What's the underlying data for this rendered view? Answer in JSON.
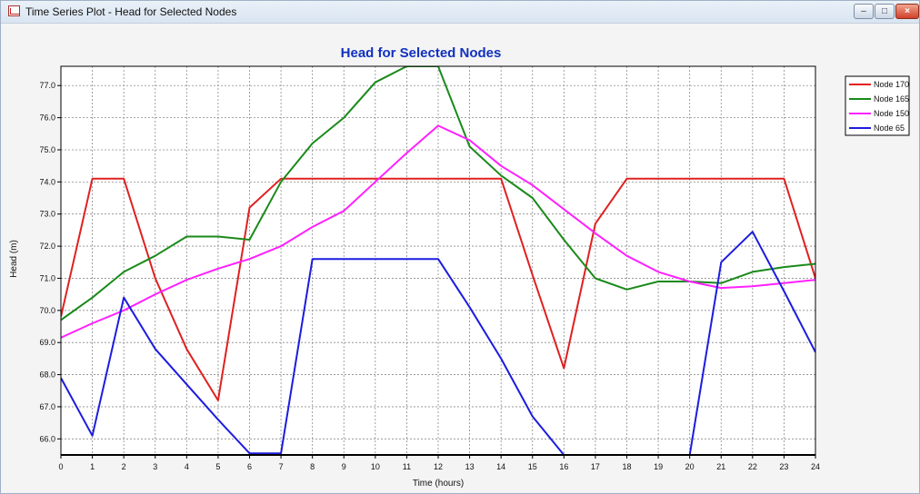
{
  "window": {
    "title": "Time Series Plot - Head for Selected Nodes",
    "min_glyph": "–",
    "max_glyph": "□",
    "close_glyph": "×"
  },
  "chart_data": {
    "type": "line",
    "title": "Head for Selected Nodes",
    "xlabel": "Time (hours)",
    "ylabel": "Head (m)",
    "xlim": [
      0,
      24
    ],
    "ylim": [
      65.5,
      77.6
    ],
    "xticks": [
      0,
      1,
      2,
      3,
      4,
      5,
      6,
      7,
      8,
      9,
      10,
      11,
      12,
      13,
      14,
      15,
      16,
      17,
      18,
      19,
      20,
      21,
      22,
      23,
      24
    ],
    "yticks": [
      66.0,
      67.0,
      68.0,
      69.0,
      70.0,
      71.0,
      72.0,
      73.0,
      74.0,
      75.0,
      76.0,
      77.0
    ],
    "grid": true,
    "legend_position": "right",
    "series": [
      {
        "name": "Node 170",
        "color": "#e02020",
        "x": [
          0,
          1,
          2,
          3,
          4,
          5,
          6,
          7,
          8,
          9,
          10,
          11,
          12,
          13,
          14,
          15,
          16,
          17,
          18,
          19,
          20,
          21,
          22,
          23,
          24
        ],
        "y": [
          69.8,
          74.1,
          74.1,
          71.0,
          68.8,
          67.2,
          73.2,
          74.1,
          74.1,
          74.1,
          74.1,
          74.1,
          74.1,
          74.1,
          74.1,
          71.1,
          68.2,
          72.7,
          74.1,
          74.1,
          74.1,
          74.1,
          74.1,
          74.1,
          71.0
        ]
      },
      {
        "name": "Node 165",
        "color": "#1a8a1a",
        "x": [
          0,
          1,
          2,
          3,
          4,
          5,
          6,
          7,
          8,
          9,
          10,
          11,
          12,
          13,
          14,
          15,
          16,
          17,
          18,
          19,
          20,
          21,
          22,
          23,
          24
        ],
        "y": [
          69.7,
          70.4,
          71.2,
          71.7,
          72.3,
          72.3,
          72.2,
          74.0,
          75.2,
          76.0,
          77.1,
          77.6,
          77.6,
          75.1,
          74.2,
          73.5,
          72.2,
          71.0,
          70.65,
          70.9,
          70.9,
          70.85,
          71.2,
          71.35,
          71.45
        ]
      },
      {
        "name": "Node 150",
        "color": "#ff20ff",
        "x": [
          0,
          1,
          2,
          3,
          4,
          5,
          6,
          7,
          8,
          9,
          10,
          11,
          12,
          13,
          14,
          15,
          16,
          17,
          18,
          19,
          20,
          21,
          22,
          23,
          24
        ],
        "y": [
          69.15,
          69.6,
          70.0,
          70.5,
          70.95,
          71.3,
          71.6,
          72.0,
          72.6,
          73.1,
          74.0,
          74.9,
          75.75,
          75.3,
          74.5,
          73.9,
          73.15,
          72.4,
          71.7,
          71.2,
          70.9,
          70.7,
          70.75,
          70.85,
          70.95
        ]
      },
      {
        "name": "Node 65",
        "color": "#1c1ce0",
        "x": [
          0,
          1,
          2,
          3,
          4,
          5,
          6,
          7,
          8,
          9,
          10,
          11,
          12,
          13,
          14,
          15,
          16,
          20,
          21,
          22,
          23,
          24
        ],
        "y": [
          67.9,
          66.1,
          70.4,
          68.8,
          67.7,
          66.6,
          65.55,
          65.55,
          71.6,
          71.6,
          71.6,
          71.6,
          71.6,
          70.1,
          68.5,
          66.7,
          65.5,
          65.5,
          71.5,
          72.45,
          70.6,
          68.7
        ]
      }
    ]
  }
}
